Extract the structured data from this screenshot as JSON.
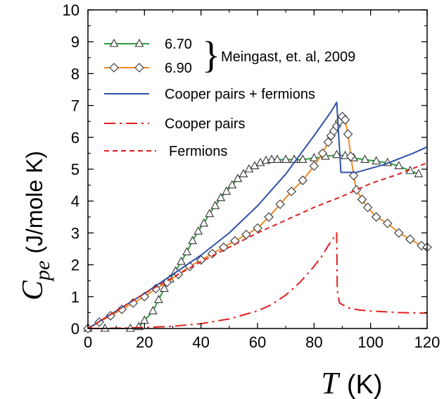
{
  "chart_data": {
    "type": "line",
    "xlabel_symbol": "T",
    "xlabel_unit": "(K)",
    "ylabel_symbol": "C",
    "ylabel_subscript": "pe",
    "ylabel_unit": "(J/mole K)",
    "xlim": [
      0,
      120
    ],
    "ylim": [
      0,
      10
    ],
    "xticks": [
      0,
      20,
      40,
      60,
      80,
      100,
      120
    ],
    "yticks": [
      0,
      1,
      2,
      3,
      4,
      5,
      6,
      7,
      8,
      9,
      10
    ],
    "grid": false,
    "legend_position": "top-left",
    "citation": "Meingast, et. al, 2009",
    "colors": {
      "green": "#2e9e3e",
      "orange": "#f08a24",
      "blue": "#3050a8",
      "red": "#e02020"
    },
    "series": [
      {
        "name": "6.70",
        "style": "line-triangle-markers",
        "color": "#2e9e3e",
        "x": [
          0,
          6,
          15,
          18,
          20,
          23,
          25,
          27,
          29,
          31,
          33,
          35,
          37,
          39,
          41,
          43,
          45,
          47,
          49,
          51,
          53,
          55,
          57,
          59,
          61,
          63,
          65,
          67,
          70,
          73,
          76,
          80,
          84,
          88,
          91,
          94,
          98,
          102,
          106,
          110,
          114,
          117
        ],
        "y": [
          0,
          0,
          0,
          0.05,
          0.25,
          0.55,
          0.9,
          1.25,
          1.55,
          1.8,
          2.1,
          2.4,
          2.75,
          3.05,
          3.3,
          3.6,
          3.85,
          4.1,
          4.3,
          4.5,
          4.7,
          4.85,
          5.0,
          5.1,
          5.2,
          5.27,
          5.3,
          5.3,
          5.3,
          5.3,
          5.3,
          5.35,
          5.4,
          5.45,
          5.42,
          5.35,
          5.3,
          5.25,
          5.2,
          5.1,
          4.95,
          4.85
        ]
      },
      {
        "name": "6.90",
        "style": "line-diamond-markers",
        "color": "#f08a24",
        "x": [
          0,
          4,
          8,
          12,
          16,
          20,
          24,
          28,
          32,
          36,
          40,
          44,
          48,
          52,
          56,
          60,
          64,
          68,
          72,
          76,
          80,
          83,
          85,
          86,
          87,
          88,
          89,
          90,
          91,
          92,
          93,
          94,
          95,
          97,
          99,
          102,
          106,
          110,
          114,
          118,
          120
        ],
        "y": [
          0,
          0.2,
          0.4,
          0.6,
          0.8,
          1.0,
          1.25,
          1.45,
          1.7,
          1.95,
          2.15,
          2.35,
          2.55,
          2.75,
          2.95,
          3.15,
          3.5,
          3.9,
          4.3,
          4.65,
          5.1,
          5.5,
          5.85,
          6.05,
          6.2,
          6.35,
          6.5,
          6.65,
          6.55,
          6.1,
          5.4,
          4.8,
          4.35,
          4.05,
          3.8,
          3.5,
          3.3,
          3.0,
          2.8,
          2.6,
          2.55
        ]
      },
      {
        "name": "Cooper pairs + fermions",
        "style": "solid",
        "color": "#3050a8",
        "x": [
          0,
          10,
          20,
          30,
          40,
          50,
          60,
          70,
          80,
          86,
          88,
          89.5,
          95,
          105,
          115,
          120
        ],
        "y": [
          0,
          0.55,
          1.1,
          1.7,
          2.3,
          3.0,
          3.85,
          4.85,
          6.05,
          6.8,
          7.1,
          4.9,
          4.9,
          5.15,
          5.5,
          5.7
        ]
      },
      {
        "name": "Cooper pairs",
        "style": "dashdot",
        "color": "#e02020",
        "x": [
          0,
          10,
          20,
          30,
          40,
          50,
          60,
          65,
          70,
          75,
          80,
          83,
          85,
          87,
          88,
          88.2,
          89,
          92,
          96,
          100,
          110,
          120
        ],
        "y": [
          0,
          0.01,
          0.03,
          0.07,
          0.15,
          0.3,
          0.55,
          0.75,
          1.05,
          1.45,
          1.95,
          2.3,
          2.6,
          2.85,
          3.0,
          1.2,
          0.8,
          0.65,
          0.58,
          0.55,
          0.5,
          0.48
        ]
      },
      {
        "name": "Fermions",
        "style": "dashed",
        "color": "#e02020",
        "x": [
          0,
          10,
          20,
          30,
          40,
          50,
          60,
          70,
          80,
          90,
          100,
          110,
          120
        ],
        "y": [
          0,
          0.55,
          1.1,
          1.6,
          2.1,
          2.55,
          3.0,
          3.4,
          3.8,
          4.15,
          4.55,
          4.85,
          5.2
        ]
      }
    ]
  }
}
